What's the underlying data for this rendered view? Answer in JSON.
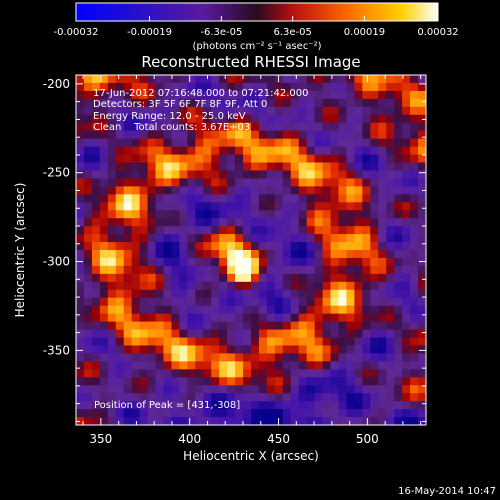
{
  "colorbar": {
    "tick_labels": [
      "-0.00032",
      "-0.00019",
      "-6.3e-05",
      "6.3e-05",
      "0.00019",
      "0.00032"
    ],
    "tick_values": [
      -0.00032,
      -0.00019,
      -6.3e-05,
      6.3e-05,
      0.00019,
      0.00032
    ],
    "range": [
      -0.00032,
      0.00032
    ],
    "unit_label": "(photons cm⁻² s⁻¹ asec⁻²)"
  },
  "chart_data": {
    "type": "heatmap",
    "title": "Reconstructed RHESSI Image",
    "xlabel": "Heliocentric X (arcsec)",
    "ylabel": "Heliocentric Y (arcsec)",
    "xlim": [
      336,
      533
    ],
    "ylim": [
      -392,
      -195
    ],
    "xticks": [
      350,
      400,
      450,
      500
    ],
    "yticks": [
      -200,
      -250,
      -300,
      -350
    ],
    "info_lines": [
      "17-Jun-2012 07:16:48.000 to 07:21:42.000",
      "Detectors: 3F 5F 6F 7F 8F 9F, Att 0",
      "Energy Range: 12.0 - 25.0 keV",
      "Clean    Total counts: 3.67E+03"
    ],
    "peak_label": "Position of Peak = [431,-308]",
    "peak": [
      431,
      -308
    ],
    "colormap": "blue-purple-red-orange-yellow-white"
  },
  "timestamp": "16-May-2014 10:47"
}
